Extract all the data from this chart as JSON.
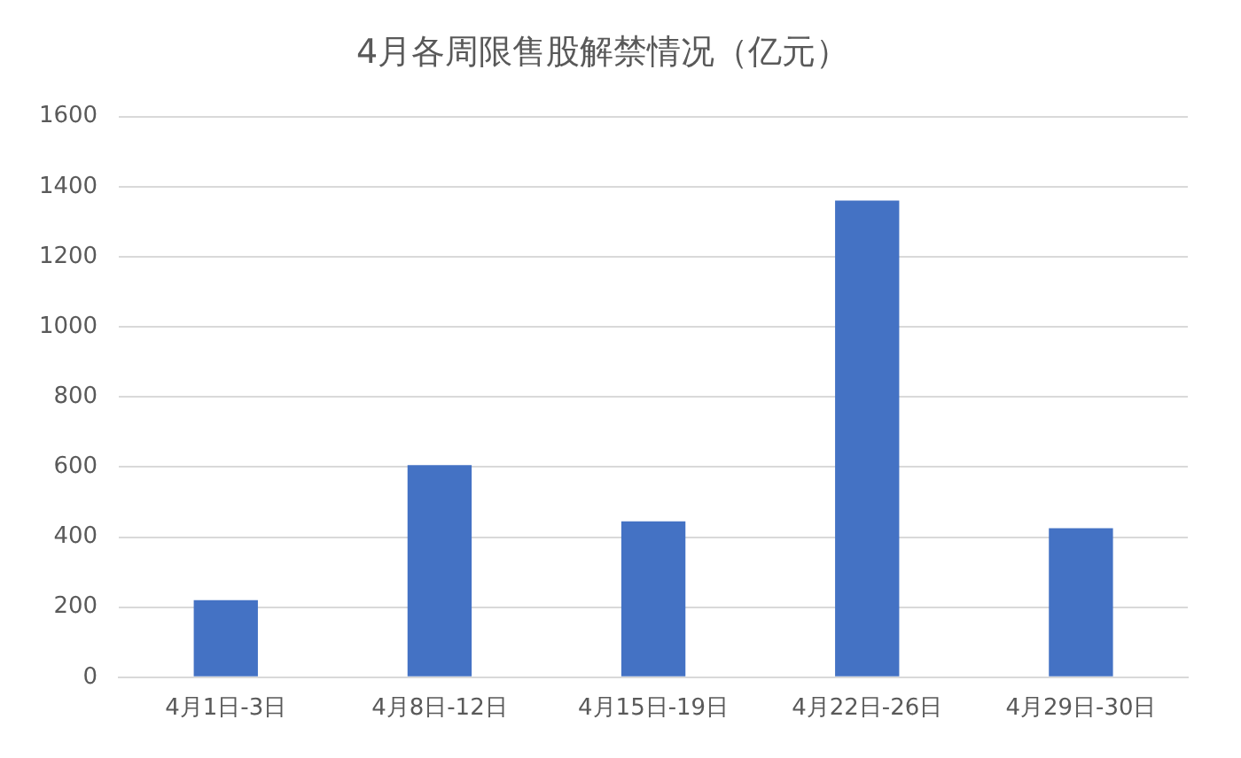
{
  "chart_data": {
    "type": "bar",
    "title": "4月各周限售股解禁情况（亿元）",
    "categories": [
      "4月1日-3日",
      "4月8日-12日",
      "4月15日-19日",
      "4月22日-26日",
      "4月29日-30日"
    ],
    "values": [
      220,
      605,
      445,
      1360,
      425
    ],
    "color": "#4472c4",
    "ylim": [
      0,
      1600
    ],
    "yticks": [
      0,
      200,
      400,
      600,
      800,
      1000,
      1200,
      1400,
      1600
    ],
    "grid": "y"
  }
}
